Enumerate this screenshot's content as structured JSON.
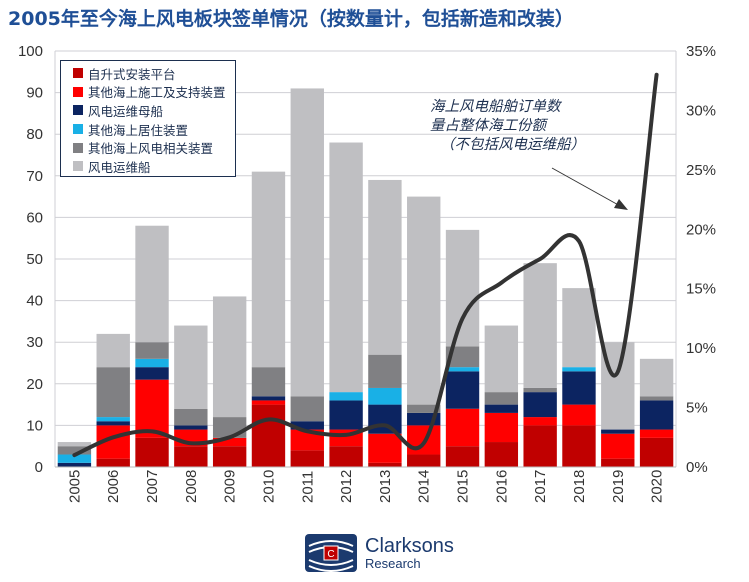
{
  "title": "2005年至今海上风电板块签单情况（按数量计，包括新造和改装）",
  "annotation": [
    "海上风电船舶订单数",
    "量占整体海工份额",
    "（不包括风电运维船）"
  ],
  "logo": {
    "name": "Clarksons",
    "sub": "Research"
  },
  "chart_data": {
    "type": "bar",
    "stacked": true,
    "categories": [
      "2005",
      "2006",
      "2007",
      "2008",
      "2009",
      "2010",
      "2011",
      "2012",
      "2013",
      "2014",
      "2015",
      "2016",
      "2017",
      "2018",
      "2019",
      "2020"
    ],
    "ylim": [
      0,
      100
    ],
    "yticks": [
      0,
      10,
      20,
      30,
      40,
      50,
      60,
      70,
      80,
      90,
      100
    ],
    "y2lim": [
      0,
      35
    ],
    "y2ticks": [
      "0%",
      "5%",
      "10%",
      "15%",
      "20%",
      "25%",
      "30%",
      "35%"
    ],
    "grid": true,
    "legend": "top-left",
    "series": [
      {
        "name": "自升式安装平台",
        "color": "#c00000",
        "values": [
          0,
          2,
          7,
          5,
          5,
          15,
          4,
          5,
          1,
          3,
          5,
          6,
          10,
          10,
          2,
          7
        ]
      },
      {
        "name": "其他海上施工及支持装置",
        "color": "#ff0000",
        "values": [
          0,
          8,
          14,
          4,
          2,
          1,
          5,
          4,
          7,
          7,
          9,
          7,
          2,
          5,
          6,
          2
        ]
      },
      {
        "name": "风电运维母船",
        "color": "#0c2461",
        "values": [
          1,
          1,
          3,
          1,
          0,
          1,
          2,
          7,
          7,
          3,
          9,
          2,
          6,
          8,
          1,
          7
        ]
      },
      {
        "name": "其他海上居住装置",
        "color": "#19b0e6",
        "values": [
          2,
          1,
          2,
          0,
          0,
          0,
          0,
          2,
          4,
          0,
          1,
          0,
          0,
          1,
          0,
          0
        ]
      },
      {
        "name": "其他海上风电相关装置",
        "color": "#808083",
        "values": [
          2,
          12,
          4,
          4,
          5,
          7,
          6,
          0,
          8,
          2,
          5,
          3,
          1,
          0,
          0,
          1
        ]
      },
      {
        "name": "风电运维船",
        "color": "#bfbfc2",
        "values": [
          1,
          8,
          28,
          20,
          29,
          47,
          74,
          60,
          42,
          50,
          28,
          16,
          30,
          19,
          21,
          9
        ]
      }
    ],
    "line": {
      "axis": "right",
      "color": "#333333",
      "values": [
        1,
        2.5,
        3,
        2,
        2.5,
        4,
        3,
        2.7,
        3.5,
        2,
        12.5,
        15.5,
        17.5,
        19,
        8,
        33
      ]
    }
  }
}
